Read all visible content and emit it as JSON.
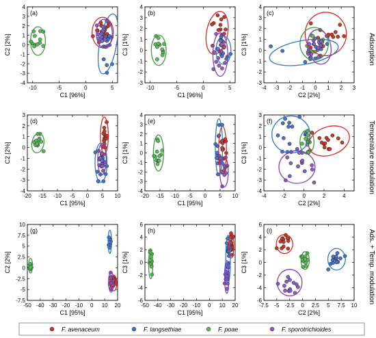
{
  "figure": {
    "row_labels": [
      "Adsorption",
      "Temperature modulation",
      "Ads. + Temp. modulation"
    ],
    "legend": [
      {
        "name": "F. avenaceum",
        "color": "#c0392b"
      },
      {
        "name": "F. langsethiae",
        "color": "#4a6fc7"
      },
      {
        "name": "F. poae",
        "color": "#5cb85c"
      },
      {
        "name": "F. sporotrichioides",
        "color": "#8e5bc2"
      }
    ],
    "ellipse_colors": [
      "#d62728",
      "#2f76c7",
      "#3a9c3a",
      "#7d3fb8"
    ]
  },
  "chart_data": [
    {
      "panel": "(a)",
      "type": "scatter",
      "xlabel": "C1 [96%]",
      "ylabel": "C2 [2%]",
      "xlim": [
        -11,
        6
      ],
      "ylim": [
        -4,
        4
      ],
      "xticks": [
        -10,
        -5,
        0,
        5
      ],
      "yticks": [
        -4,
        -3,
        -2,
        -1,
        0,
        1,
        2,
        3,
        4
      ],
      "clusters": [
        {
          "series": 0,
          "center": [
            3.2,
            1.3
          ],
          "radius": [
            2.0,
            1.6
          ],
          "angle": 0,
          "n": 16,
          "spread": [
            1.2,
            1.0
          ]
        },
        {
          "series": 1,
          "center": [
            4.2,
            0.1
          ],
          "radius": [
            1.6,
            3.2
          ],
          "angle": -10,
          "n": 14,
          "spread": [
            0.9,
            1.6
          ]
        },
        {
          "series": 2,
          "center": [
            -9.0,
            0.4
          ],
          "radius": [
            1.4,
            1.5
          ],
          "angle": 0,
          "n": 12,
          "spread": [
            0.9,
            0.9
          ]
        },
        {
          "series": 3,
          "center": [
            3.5,
            1.2
          ],
          "radius": [
            1.5,
            1.5
          ],
          "angle": 0,
          "n": 13,
          "spread": [
            0.9,
            0.9
          ]
        }
      ]
    },
    {
      "panel": "(b)",
      "type": "scatter",
      "xlabel": "C1 [96%]",
      "ylabel": "C3 [1%]",
      "xlim": [
        -11,
        6
      ],
      "ylim": [
        -3,
        4
      ],
      "xticks": [
        -10,
        -5,
        0,
        5
      ],
      "yticks": [
        -3,
        -2,
        -1,
        0,
        1,
        2,
        3,
        4
      ],
      "clusters": [
        {
          "series": 0,
          "center": [
            2.6,
            1.6
          ],
          "radius": [
            2.0,
            2.0
          ],
          "angle": -10,
          "n": 14,
          "spread": [
            1.2,
            1.3
          ]
        },
        {
          "series": 1,
          "center": [
            3.8,
            0.0
          ],
          "radius": [
            1.4,
            1.3
          ],
          "angle": 0,
          "n": 14,
          "spread": [
            0.9,
            0.8
          ]
        },
        {
          "series": 2,
          "center": [
            -8.4,
            0.0
          ],
          "radius": [
            1.4,
            1.4
          ],
          "angle": 0,
          "n": 12,
          "spread": [
            0.9,
            0.9
          ]
        },
        {
          "series": 3,
          "center": [
            3.2,
            -0.4
          ],
          "radius": [
            1.4,
            2.0
          ],
          "angle": 0,
          "n": 13,
          "spread": [
            0.9,
            1.2
          ]
        }
      ]
    },
    {
      "panel": "(c)",
      "type": "scatter",
      "xlabel": "C2 [2%]",
      "ylabel": "C3 [1%]",
      "xlim": [
        -4,
        3
      ],
      "ylim": [
        -3,
        4
      ],
      "xticks": [
        -4,
        -3,
        -2,
        -1,
        0,
        1,
        2,
        3
      ],
      "yticks": [
        -3,
        -2,
        -1,
        0,
        1,
        2,
        3,
        4
      ],
      "clusters": [
        {
          "series": 0,
          "center": [
            0.8,
            1.5
          ],
          "radius": [
            1.6,
            2.0
          ],
          "angle": 0,
          "n": 14,
          "spread": [
            1.0,
            1.2
          ]
        },
        {
          "series": 1,
          "center": [
            -0.9,
            -0.2
          ],
          "radius": [
            2.7,
            1.1
          ],
          "angle": 10,
          "n": 14,
          "spread": [
            1.6,
            0.7
          ]
        },
        {
          "series": 2,
          "center": [
            -0.1,
            0.6
          ],
          "radius": [
            1.1,
            1.5
          ],
          "angle": 0,
          "n": 12,
          "spread": [
            0.7,
            0.9
          ]
        },
        {
          "series": 3,
          "center": [
            0.3,
            0.3
          ],
          "radius": [
            0.9,
            1.6
          ],
          "angle": 10,
          "n": 13,
          "spread": [
            0.6,
            1.0
          ]
        }
      ]
    },
    {
      "panel": "(d)",
      "type": "scatter",
      "xlabel": "C1 [95%]",
      "ylabel": "C2 [2%]",
      "xlim": [
        -20,
        10
      ],
      "ylim": [
        -4,
        3
      ],
      "xticks": [
        -20,
        -15,
        -10,
        -5,
        0,
        5,
        10
      ],
      "yticks": [
        -4,
        -3,
        -2,
        -1,
        0,
        1,
        2,
        3
      ],
      "clusters": [
        {
          "series": 0,
          "center": [
            5.6,
            1.1
          ],
          "radius": [
            1.3,
            1.7
          ],
          "angle": 0,
          "n": 14,
          "spread": [
            0.7,
            1.1
          ]
        },
        {
          "series": 1,
          "center": [
            4.5,
            -1.4
          ],
          "radius": [
            2.0,
            1.8
          ],
          "angle": 0,
          "n": 16,
          "spread": [
            1.2,
            1.1
          ]
        },
        {
          "series": 2,
          "center": [
            -16.5,
            0.4
          ],
          "radius": [
            2.0,
            0.9
          ],
          "angle": -10,
          "n": 13,
          "spread": [
            1.2,
            0.5
          ]
        },
        {
          "series": 3,
          "center": [
            4.8,
            -1.1
          ],
          "radius": [
            1.4,
            1.4
          ],
          "angle": 0,
          "n": 12,
          "spread": [
            0.8,
            0.9
          ]
        }
      ]
    },
    {
      "panel": "(e)",
      "type": "scatter",
      "xlabel": "C1 [95%]",
      "ylabel": "C3 [1%]",
      "xlim": [
        -20,
        10
      ],
      "ylim": [
        -4,
        4
      ],
      "xticks": [
        -20,
        -15,
        -10,
        -5,
        0,
        5,
        10
      ],
      "yticks": [
        -4,
        -3,
        -2,
        -1,
        0,
        1,
        2,
        3,
        4
      ],
      "clusters": [
        {
          "series": 0,
          "center": [
            5.8,
            0.3
          ],
          "radius": [
            1.3,
            2.5
          ],
          "angle": 0,
          "n": 14,
          "spread": [
            0.7,
            1.5
          ]
        },
        {
          "series": 1,
          "center": [
            4.6,
            0.6
          ],
          "radius": [
            1.2,
            3.0
          ],
          "angle": 0,
          "n": 16,
          "spread": [
            0.7,
            1.8
          ]
        },
        {
          "series": 2,
          "center": [
            -15.5,
            0.0
          ],
          "radius": [
            1.7,
            1.9
          ],
          "angle": 0,
          "n": 12,
          "spread": [
            1.0,
            1.1
          ]
        },
        {
          "series": 3,
          "center": [
            6.3,
            -2.0
          ],
          "radius": [
            1.4,
            1.6
          ],
          "angle": 0,
          "n": 12,
          "spread": [
            0.8,
            1.0
          ]
        }
      ]
    },
    {
      "panel": "(f)",
      "type": "scatter",
      "xlabel": "C2 [2%]",
      "ylabel": "C3 [1%]",
      "xlim": [
        -4,
        5
      ],
      "ylim": [
        -4,
        3
      ],
      "xticks": [
        -4,
        -2,
        0,
        2,
        4
      ],
      "yticks": [
        -4,
        -3,
        -2,
        -1,
        0,
        1,
        2,
        3
      ],
      "clusters": [
        {
          "series": 0,
          "center": [
            2.5,
            0.6
          ],
          "radius": [
            2.1,
            1.3
          ],
          "angle": 20,
          "n": 13,
          "spread": [
            1.3,
            0.8
          ]
        },
        {
          "series": 1,
          "center": [
            -1.3,
            1.2
          ],
          "radius": [
            1.9,
            1.7
          ],
          "angle": 0,
          "n": 15,
          "spread": [
            1.2,
            1.0
          ]
        },
        {
          "series": 2,
          "center": [
            0.3,
            0.5
          ],
          "radius": [
            0.7,
            1.1
          ],
          "angle": 0,
          "n": 12,
          "spread": [
            0.4,
            0.7
          ]
        },
        {
          "series": 3,
          "center": [
            -0.7,
            -1.8
          ],
          "radius": [
            1.8,
            1.5
          ],
          "angle": 0,
          "n": 14,
          "spread": [
            1.1,
            0.9
          ]
        }
      ]
    },
    {
      "panel": "(g)",
      "type": "scatter",
      "xlabel": "C1 [95%]",
      "ylabel": "C2 [2%]",
      "xlim": [
        -50,
        20
      ],
      "ylim": [
        -7.5,
        10
      ],
      "xticks": [
        -50,
        -40,
        -30,
        -20,
        -10,
        0,
        10,
        20
      ],
      "yticks": [
        -7.5,
        -5,
        -2.5,
        0,
        2.5,
        5,
        7.5,
        10
      ],
      "clusters": [
        {
          "series": 0,
          "center": [
            17,
            -3.5
          ],
          "radius": [
            2.4,
            1.8
          ],
          "angle": 0,
          "n": 14,
          "spread": [
            1.3,
            1.0
          ]
        },
        {
          "series": 1,
          "center": [
            14,
            6.0
          ],
          "radius": [
            1.3,
            2.7
          ],
          "angle": 0,
          "n": 15,
          "spread": [
            0.7,
            1.6
          ]
        },
        {
          "series": 2,
          "center": [
            -47.5,
            0.5
          ],
          "radius": [
            1.5,
            1.7
          ],
          "angle": 0,
          "n": 12,
          "spread": [
            0.8,
            1.0
          ]
        },
        {
          "series": 3,
          "center": [
            15,
            -3.3
          ],
          "radius": [
            2.0,
            2.3
          ],
          "angle": 0,
          "n": 12,
          "spread": [
            1.1,
            1.3
          ]
        }
      ]
    },
    {
      "panel": "(h)",
      "type": "scatter",
      "xlabel": "C1 [95%]",
      "ylabel": "C3 [1%]",
      "xlim": [
        -50,
        20
      ],
      "ylim": [
        -6,
        6
      ],
      "xticks": [
        -50,
        -40,
        -30,
        -20,
        -10,
        0,
        10,
        20
      ],
      "yticks": [
        -6,
        -4,
        -2,
        0,
        2,
        4,
        6
      ],
      "clusters": [
        {
          "series": 0,
          "center": [
            17,
            2.7
          ],
          "radius": [
            2.0,
            2.0
          ],
          "angle": 0,
          "n": 14,
          "spread": [
            1.1,
            1.2
          ]
        },
        {
          "series": 1,
          "center": [
            14.5,
            0.5
          ],
          "radius": [
            1.8,
            3.8
          ],
          "angle": 0,
          "n": 15,
          "spread": [
            1.0,
            2.3
          ]
        },
        {
          "series": 2,
          "center": [
            -45.5,
            -0.3
          ],
          "radius": [
            1.6,
            2.3
          ],
          "angle": 0,
          "n": 12,
          "spread": [
            0.9,
            1.4
          ]
        },
        {
          "series": 3,
          "center": [
            13.5,
            -2.3
          ],
          "radius": [
            1.7,
            2.6
          ],
          "angle": 0,
          "n": 13,
          "spread": [
            1.0,
            1.5
          ]
        }
      ]
    },
    {
      "panel": "(i)",
      "type": "scatter",
      "xlabel": "C2 [2%]",
      "ylabel": "C3 [1%]",
      "xlim": [
        -7.5,
        10
      ],
      "ylim": [
        -6,
        6
      ],
      "xticks": [
        -7.5,
        -5,
        -2.5,
        0,
        2.5,
        5,
        7.5,
        10
      ],
      "yticks": [
        -6,
        -4,
        -2,
        0,
        2,
        4,
        6
      ],
      "clusters": [
        {
          "series": 0,
          "center": [
            -3.5,
            2.9
          ],
          "radius": [
            1.6,
            1.5
          ],
          "angle": 0,
          "n": 13,
          "spread": [
            1.0,
            0.9
          ]
        },
        {
          "series": 1,
          "center": [
            6.6,
            0.5
          ],
          "radius": [
            1.7,
            1.7
          ],
          "angle": 0,
          "n": 14,
          "spread": [
            1.0,
            1.0
          ]
        },
        {
          "series": 2,
          "center": [
            0.5,
            0.3
          ],
          "radius": [
            0.8,
            1.4
          ],
          "angle": 0,
          "n": 12,
          "spread": [
            0.5,
            0.8
          ]
        },
        {
          "series": 3,
          "center": [
            -2.5,
            -3.2
          ],
          "radius": [
            2.4,
            2.1
          ],
          "angle": 0,
          "n": 14,
          "spread": [
            1.4,
            1.2
          ]
        }
      ]
    }
  ]
}
